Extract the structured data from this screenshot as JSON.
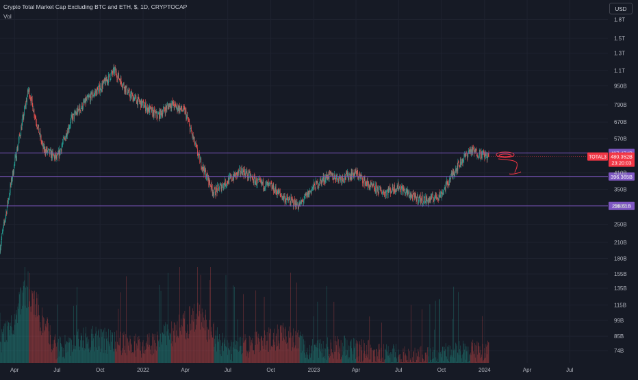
{
  "header": {
    "title": "Crypto Total Market Cap Excluding BTC and ETH, $, 1D, CRYPTOCAP",
    "volume_label": "Vol",
    "currency_button": "USD"
  },
  "chart_data": {
    "type": "candlestick",
    "symbol": "TOTAL3",
    "timeframe": "1D",
    "log_scale": true,
    "price_axis_labels": [
      "1.8T",
      "1.5T",
      "1.3T",
      "1.1T",
      "950B",
      "790B",
      "670B",
      "570B",
      "410B",
      "350B",
      "298B",
      "250B",
      "210B",
      "180B",
      "155B",
      "135B",
      "115B",
      "99B",
      "85B",
      "74B"
    ],
    "time_axis_labels": [
      "Apr",
      "Jul",
      "Oct",
      "2022",
      "Apr",
      "Jul",
      "Oct",
      "2023",
      "Apr",
      "Jul",
      "Oct",
      "2024",
      "Apr",
      "Jul"
    ],
    "approx_closes_B": [
      {
        "date": "2021-03",
        "value": 200
      },
      {
        "date": "2021-04",
        "value": 450
      },
      {
        "date": "2021-05",
        "value": 920
      },
      {
        "date": "2021-06",
        "value": 520
      },
      {
        "date": "2021-07",
        "value": 470
      },
      {
        "date": "2021-08",
        "value": 690
      },
      {
        "date": "2021-09",
        "value": 820
      },
      {
        "date": "2021-10",
        "value": 930
      },
      {
        "date": "2021-11",
        "value": 1100
      },
      {
        "date": "2021-12",
        "value": 880
      },
      {
        "date": "2022-01",
        "value": 790
      },
      {
        "date": "2022-02",
        "value": 710
      },
      {
        "date": "2022-03",
        "value": 800
      },
      {
        "date": "2022-04",
        "value": 740
      },
      {
        "date": "2022-05",
        "value": 470
      },
      {
        "date": "2022-06",
        "value": 340
      },
      {
        "date": "2022-07",
        "value": 380
      },
      {
        "date": "2022-08",
        "value": 420
      },
      {
        "date": "2022-09",
        "value": 375
      },
      {
        "date": "2022-10",
        "value": 360
      },
      {
        "date": "2022-11",
        "value": 320
      },
      {
        "date": "2022-12",
        "value": 300
      },
      {
        "date": "2023-01",
        "value": 360
      },
      {
        "date": "2023-02",
        "value": 400
      },
      {
        "date": "2023-03",
        "value": 390
      },
      {
        "date": "2023-04",
        "value": 410
      },
      {
        "date": "2023-05",
        "value": 360
      },
      {
        "date": "2023-06",
        "value": 340
      },
      {
        "date": "2023-07",
        "value": 360
      },
      {
        "date": "2023-08",
        "value": 325
      },
      {
        "date": "2023-09",
        "value": 315
      },
      {
        "date": "2023-10",
        "value": 335
      },
      {
        "date": "2023-11",
        "value": 430
      },
      {
        "date": "2023-12",
        "value": 510
      },
      {
        "date": "2024-01",
        "value": 480
      }
    ],
    "volume_profile_B": [
      {
        "date": "2021-03",
        "value": 95
      },
      {
        "date": "2021-05",
        "value": 160
      },
      {
        "date": "2021-07",
        "value": 88
      },
      {
        "date": "2021-09",
        "value": 100
      },
      {
        "date": "2021-11",
        "value": 96
      },
      {
        "date": "2022-01",
        "value": 90
      },
      {
        "date": "2022-05",
        "value": 125
      },
      {
        "date": "2022-07",
        "value": 86
      },
      {
        "date": "2022-11",
        "value": 103
      },
      {
        "date": "2023-01",
        "value": 86
      },
      {
        "date": "2023-03",
        "value": 90
      },
      {
        "date": "2023-06",
        "value": 82
      },
      {
        "date": "2023-09",
        "value": 79
      },
      {
        "date": "2023-12",
        "value": 86
      },
      {
        "date": "2024-01",
        "value": 85
      }
    ],
    "horizontal_lines": [
      {
        "label": "497.474B",
        "value": 497.474,
        "color": "#7e57c2"
      },
      {
        "label": "396.365B",
        "value": 396.365,
        "color": "#7e57c2"
      },
      {
        "label": "298.61B",
        "value": 298.61,
        "color": "#7e57c2"
      }
    ],
    "current_price": {
      "symbol": "TOTAL3",
      "value_label": "480.352B",
      "countdown": "23:20:03",
      "color": "#f23645"
    },
    "colors": {
      "up": "#26a69a",
      "down": "#ef5350",
      "background": "#161a25",
      "grid": "#1f2330",
      "axis_text": "#b2b5be",
      "level_line": "#7e57c2",
      "annotation": "#f23645"
    }
  }
}
